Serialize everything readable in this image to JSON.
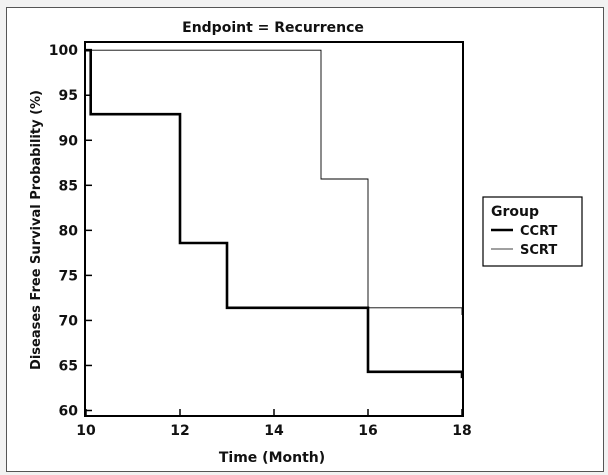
{
  "chart_data": {
    "type": "line",
    "step": true,
    "title": "Endpoint = Recurrence",
    "xlabel": "Time (Month)",
    "ylabel": "Diseases Free Survival Probability (%)",
    "xlim": [
      10,
      18
    ],
    "ylim": [
      59.5,
      100.8
    ],
    "xticks": [
      "10",
      "12",
      "14",
      "16",
      "18"
    ],
    "yticks": [
      "60",
      "65",
      "70",
      "75",
      "80",
      "85",
      "90",
      "95",
      "100"
    ],
    "grid": false,
    "legend": {
      "title": "Group",
      "position": "right"
    },
    "series": [
      {
        "name": "CCRT",
        "color": "#000000",
        "style": "solid-thick",
        "points": [
          [
            10,
            100
          ],
          [
            10.1,
            100
          ],
          [
            10.1,
            92.9
          ],
          [
            12,
            92.9
          ],
          [
            12,
            78.6
          ],
          [
            13,
            78.6
          ],
          [
            13,
            71.4
          ],
          [
            16,
            71.4
          ],
          [
            16,
            64.3
          ],
          [
            18,
            64.3
          ],
          [
            18,
            63.6
          ]
        ]
      },
      {
        "name": "SCRT",
        "color": "#000000",
        "style": "solid-thin",
        "points": [
          [
            10,
            100
          ],
          [
            15,
            100
          ],
          [
            15,
            85.7
          ],
          [
            16,
            85.7
          ],
          [
            16,
            71.4
          ],
          [
            18,
            71.4
          ],
          [
            18,
            70.6
          ]
        ]
      }
    ]
  }
}
